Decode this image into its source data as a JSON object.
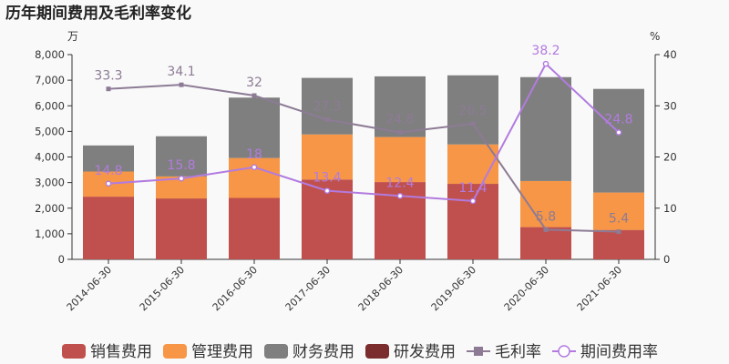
{
  "chart_data": {
    "type": "bar",
    "title": "历年期间费用及毛利率变化",
    "left_unit": "万",
    "right_unit": "%",
    "categories": [
      "2014-06-30",
      "2015-06-30",
      "2016-06-30",
      "2017-06-30",
      "2018-06-30",
      "2019-06-30",
      "2020-06-30",
      "2021-06-30"
    ],
    "y_left": {
      "min": 0,
      "max": 8000,
      "ticks": [
        "0",
        "1,000",
        "2,000",
        "3,000",
        "4,000",
        "5,000",
        "6,000",
        "7,000",
        "8,000"
      ]
    },
    "y_right": {
      "min": 0,
      "max": 40,
      "ticks": [
        "0",
        "10",
        "20",
        "30",
        "40"
      ]
    },
    "stacked": true,
    "series": [
      {
        "name": "销售费用",
        "kind": "bar",
        "color": "#c0504d",
        "values": [
          2450,
          2380,
          2400,
          3120,
          3020,
          2950,
          1260,
          1150
        ]
      },
      {
        "name": "管理费用",
        "kind": "bar",
        "color": "#f79646",
        "values": [
          980,
          860,
          1560,
          1760,
          1760,
          1540,
          1800,
          1460
        ]
      },
      {
        "name": "财务费用",
        "kind": "bar",
        "color": "#7f7f7f",
        "values": [
          1020,
          1570,
          2360,
          2210,
          2370,
          2700,
          4060,
          4050
        ]
      },
      {
        "name": "研发费用",
        "kind": "bar",
        "color": "#7b2c2c",
        "values": [
          0,
          0,
          0,
          0,
          0,
          0,
          0,
          0
        ]
      },
      {
        "name": "毛利率",
        "kind": "line",
        "axis": "right",
        "color": "#8d7b95",
        "marker": "square",
        "values": [
          33.3,
          34.1,
          32,
          27.3,
          24.8,
          26.5,
          5.8,
          5.4
        ]
      },
      {
        "name": "期间费用率",
        "kind": "line",
        "axis": "right",
        "color": "#b27be0",
        "marker": "circle",
        "values": [
          14.8,
          15.8,
          18,
          13.4,
          12.4,
          11.4,
          38.2,
          24.8
        ]
      }
    ],
    "legend_position": "bottom",
    "grid": false
  }
}
